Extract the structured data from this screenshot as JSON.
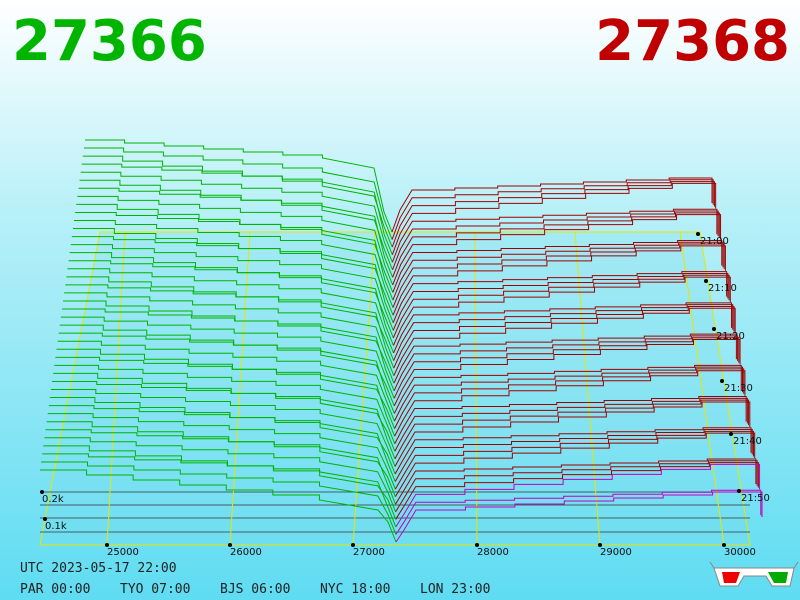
{
  "header": {
    "bid": "27366",
    "ask": "27368"
  },
  "price_axis": {
    "labels": [
      "25000",
      "26000",
      "27000",
      "28000",
      "29000",
      "30000"
    ]
  },
  "time_axis": {
    "labels": [
      "21:00",
      "21:10",
      "21:20",
      "21:30",
      "21:40",
      "21:50"
    ]
  },
  "depth_axis": {
    "labels": [
      "0.2k",
      "0.1k"
    ]
  },
  "footer": {
    "utc": "UTC 2023-05-17 22:00",
    "clocks": [
      "PAR 00:00",
      "TYO 07:00",
      "BJS 06:00",
      "NYC 18:00",
      "LON 23:00"
    ]
  }
}
